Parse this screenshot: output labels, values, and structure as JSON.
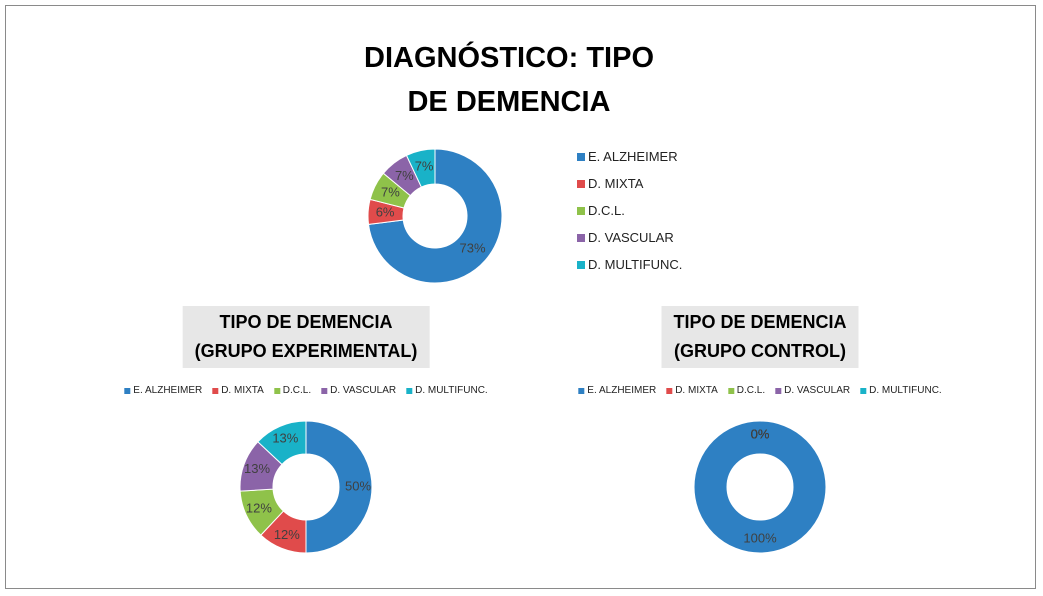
{
  "chart_data": [
    {
      "type": "pie",
      "title": "DIAGNÓSTICO: TIPO\nDE DEMENCIA",
      "categories": [
        "E. ALZHEIMER",
        "D.  MIXTA",
        "D.C.L.",
        "D. VASCULAR",
        "D. MULTIFUNC."
      ],
      "values": [
        73,
        6,
        7,
        7,
        7
      ],
      "value_labels": [
        "73%",
        "6%",
        "7%",
        "7%",
        "7%"
      ],
      "colors": [
        "#2e80c3",
        "#e04b4b",
        "#8fc24a",
        "#8b64a8",
        "#19b2c8"
      ],
      "legend": "right"
    },
    {
      "type": "pie",
      "title": "TIPO DE DEMENCIA\n(GRUPO EXPERIMENTAL)",
      "categories": [
        "E. ALZHEIMER",
        "D.  MIXTA",
        "D.C.L.",
        "D. VASCULAR",
        "D. MULTIFUNC."
      ],
      "values": [
        50,
        12,
        12,
        13,
        13
      ],
      "value_labels": [
        "50%",
        "12%",
        "12%",
        "13%",
        "13%"
      ],
      "colors": [
        "#2e80c3",
        "#e04b4b",
        "#8fc24a",
        "#8b64a8",
        "#19b2c8"
      ],
      "legend": "top"
    },
    {
      "type": "pie",
      "title": "TIPO DE DEMENCIA\n(GRUPO CONTROL)",
      "categories": [
        "E. ALZHEIMER",
        "D.  MIXTA",
        "D.C.L.",
        "D. VASCULAR",
        "D. MULTIFUNC."
      ],
      "values": [
        100,
        0,
        0,
        0,
        0
      ],
      "value_labels": [
        "100%",
        "0%",
        "0%",
        "0%",
        "0%"
      ],
      "colors": [
        "#2e80c3",
        "#e04b4b",
        "#8fc24a",
        "#8b64a8",
        "#19b2c8"
      ],
      "legend": "top"
    }
  ]
}
